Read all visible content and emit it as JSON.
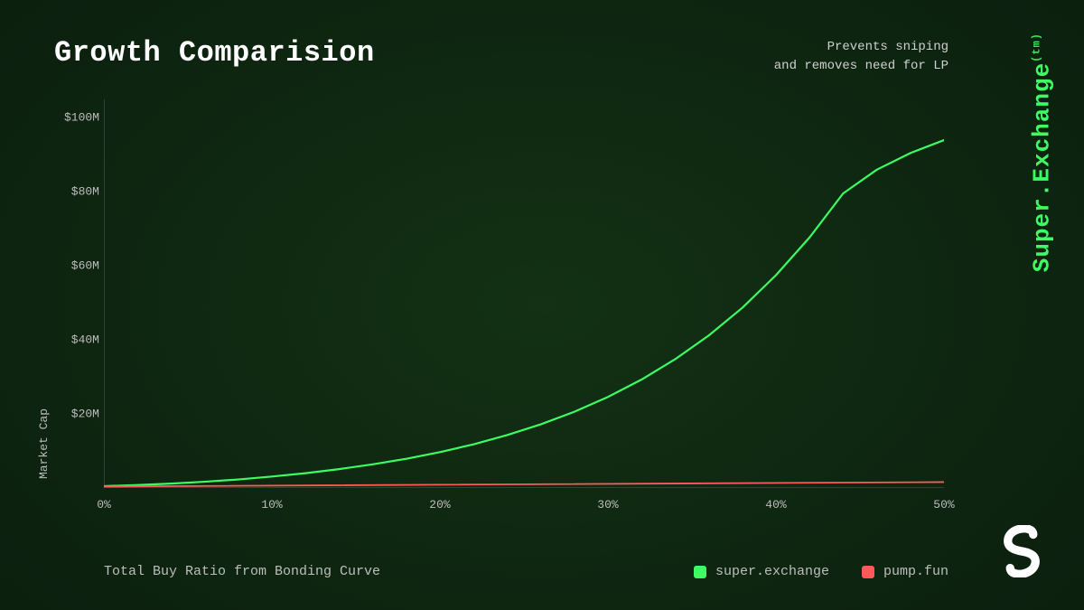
{
  "title": "Growth Comparision",
  "subtitle_line1": "Prevents sniping",
  "subtitle_line2": "and removes need for LP",
  "brand_name": "Super.Exchange",
  "brand_tm": "(tm)",
  "chart": {
    "type": "line",
    "background_color": "transparent",
    "axis_color": "#5a5a5a",
    "axis_width": 1,
    "ylabel": "Market Cap",
    "xlabel": "Total Buy Ratio from Bonding Curve",
    "label_fontsize": 13,
    "label_color": "#bdbdbd",
    "tick_fontsize": 13,
    "tick_color": "#bdbdbd",
    "xlim": [
      0,
      50
    ],
    "ylim": [
      0,
      105
    ],
    "x_ticks_values": [
      0,
      10,
      20,
      30,
      40,
      50
    ],
    "x_ticks_labels": [
      "0%",
      "10%",
      "20%",
      "30%",
      "40%",
      "50%"
    ],
    "y_ticks_values": [
      20,
      40,
      60,
      80,
      100
    ],
    "y_ticks_labels": [
      "$20M",
      "$40M",
      "$60M",
      "$80M",
      "$100M"
    ],
    "series": [
      {
        "name": "super.exchange",
        "color": "#3dfb62",
        "line_width": 2.2,
        "x": [
          0,
          2,
          4,
          6,
          8,
          10,
          12,
          14,
          16,
          18,
          20,
          22,
          24,
          26,
          28,
          30,
          32,
          34,
          36,
          38,
          40,
          42,
          44,
          46,
          48,
          50
        ],
        "y": [
          0.5,
          0.8,
          1.2,
          1.7,
          2.3,
          3.1,
          4.0,
          5.1,
          6.4,
          7.9,
          9.7,
          11.8,
          14.3,
          17.2,
          20.6,
          24.6,
          29.3,
          34.8,
          41.2,
          48.7,
          57.5,
          67.7,
          79.6,
          86.0,
          90.5,
          94.0
        ]
      },
      {
        "name": "pump.fun",
        "color": "#ff5a5a",
        "line_width": 1.8,
        "x": [
          0,
          50
        ],
        "y": [
          0.4,
          1.6
        ]
      }
    ],
    "legend_position": "bottom-right",
    "legend_fontsize": 15
  },
  "colors": {
    "title": "#ffffff",
    "subtitle": "#d0d0d0",
    "brand": "#3dfb62",
    "logo": "#ffffff"
  }
}
